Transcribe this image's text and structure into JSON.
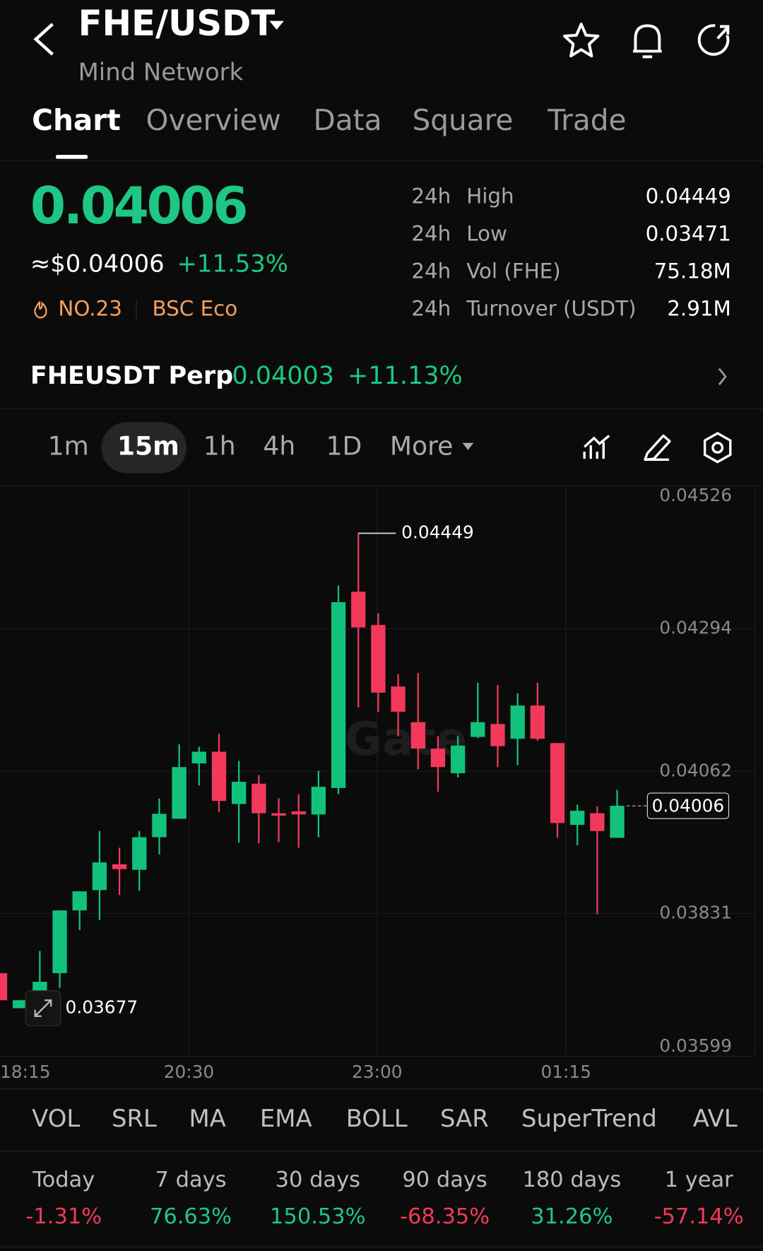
{
  "header": {
    "pair": "FHE/USDT",
    "name": "Mind Network"
  },
  "tabs": [
    "Chart",
    "Overview",
    "Data",
    "Square",
    "Trade"
  ],
  "price": {
    "last": "0.04006",
    "usd": "≈$0.04006",
    "change": "+11.53%",
    "rank": "NO.23",
    "tag": "BSC Eco"
  },
  "stats": [
    {
      "period": "24h",
      "label": "High",
      "value": "0.04449"
    },
    {
      "period": "24h",
      "label": "Low",
      "value": "0.03471"
    },
    {
      "period": "24h",
      "label": "Vol (FHE)",
      "value": "75.18M"
    },
    {
      "period": "24h",
      "label": "Turnover (USDT)",
      "value": "2.91M"
    }
  ],
  "perp": {
    "name": "FHEUSDT Perp",
    "price": "0.04003",
    "change": "+11.13%"
  },
  "intervals": [
    "1m",
    "15m",
    "1h",
    "4h",
    "1D",
    "More"
  ],
  "chart_data": {
    "type": "candlestick",
    "watermark": "Gate",
    "open": [
      0.03734,
      0.03677,
      0.03683,
      0.03734,
      0.03836,
      0.03869,
      0.03911,
      0.03902,
      0.03955,
      0.03985,
      0.04075,
      0.04094,
      0.04009,
      0.04042,
      0.03994,
      0.03997,
      0.03992,
      0.04035,
      0.04354,
      0.043,
      0.042,
      0.04142,
      0.04099,
      0.04059,
      0.04118,
      0.04139,
      0.04115,
      0.04169,
      0.04108,
      0.03975,
      0.03994,
      0.03954
    ],
    "high": [
      0.03734,
      0.0369,
      0.0377,
      0.03836,
      0.03867,
      0.03965,
      0.03938,
      0.03965,
      0.04018,
      0.04106,
      0.04102,
      0.04123,
      0.04079,
      0.04056,
      0.04018,
      0.04025,
      0.04063,
      0.04364,
      0.04449,
      0.04319,
      0.0422,
      0.04222,
      0.04119,
      0.04119,
      0.04206,
      0.04202,
      0.04189,
      0.04206,
      0.04108,
      0.04008,
      0.04005,
      0.04032
    ],
    "low": [
      0.0369,
      0.03677,
      0.0368,
      0.0371,
      0.03804,
      0.0382,
      0.03861,
      0.03868,
      0.03927,
      0.03985,
      0.04039,
      0.03996,
      0.03946,
      0.03945,
      0.03947,
      0.03938,
      0.03955,
      0.04025,
      0.04166,
      0.04159,
      0.04119,
      0.04065,
      0.04029,
      0.04052,
      0.04116,
      0.04069,
      0.04072,
      0.04112,
      0.03954,
      0.03942,
      0.0383,
      0.03954
    ],
    "close": [
      0.0369,
      0.0369,
      0.0372,
      0.03836,
      0.03867,
      0.03914,
      0.03903,
      0.03955,
      0.03993,
      0.04069,
      0.04094,
      0.04014,
      0.04045,
      0.03994,
      0.0399,
      0.03992,
      0.04037,
      0.04337,
      0.04296,
      0.0419,
      0.04159,
      0.04099,
      0.04069,
      0.04104,
      0.04142,
      0.04103,
      0.04169,
      0.04115,
      0.03978,
      0.03998,
      0.03965,
      0.04006
    ],
    "up_color": "#12c27c",
    "down_color": "#f2395c",
    "ylim": [
      0.03599,
      0.04526
    ],
    "yticks": [
      0.04526,
      0.04294,
      0.04062,
      0.03831,
      0.03599
    ],
    "grid": true,
    "x_labels": [
      "18:15",
      "20:30",
      "23:00",
      "01:15"
    ],
    "high_label": 0.04449,
    "low_label": 0.03677,
    "last_price": 0.04006
  },
  "indicators": [
    "VOL",
    "SRL",
    "MA",
    "EMA",
    "BOLL",
    "SAR",
    "SuperTrend",
    "AVL"
  ],
  "performance": [
    {
      "period": "Today",
      "change": "-1.31%"
    },
    {
      "period": "7 days",
      "change": "76.63%"
    },
    {
      "period": "30 days",
      "change": "150.53%"
    },
    {
      "period": "90 days",
      "change": "-68.35%"
    },
    {
      "period": "180 days",
      "change": "31.26%"
    },
    {
      "period": "1 year",
      "change": "-57.14%"
    }
  ]
}
